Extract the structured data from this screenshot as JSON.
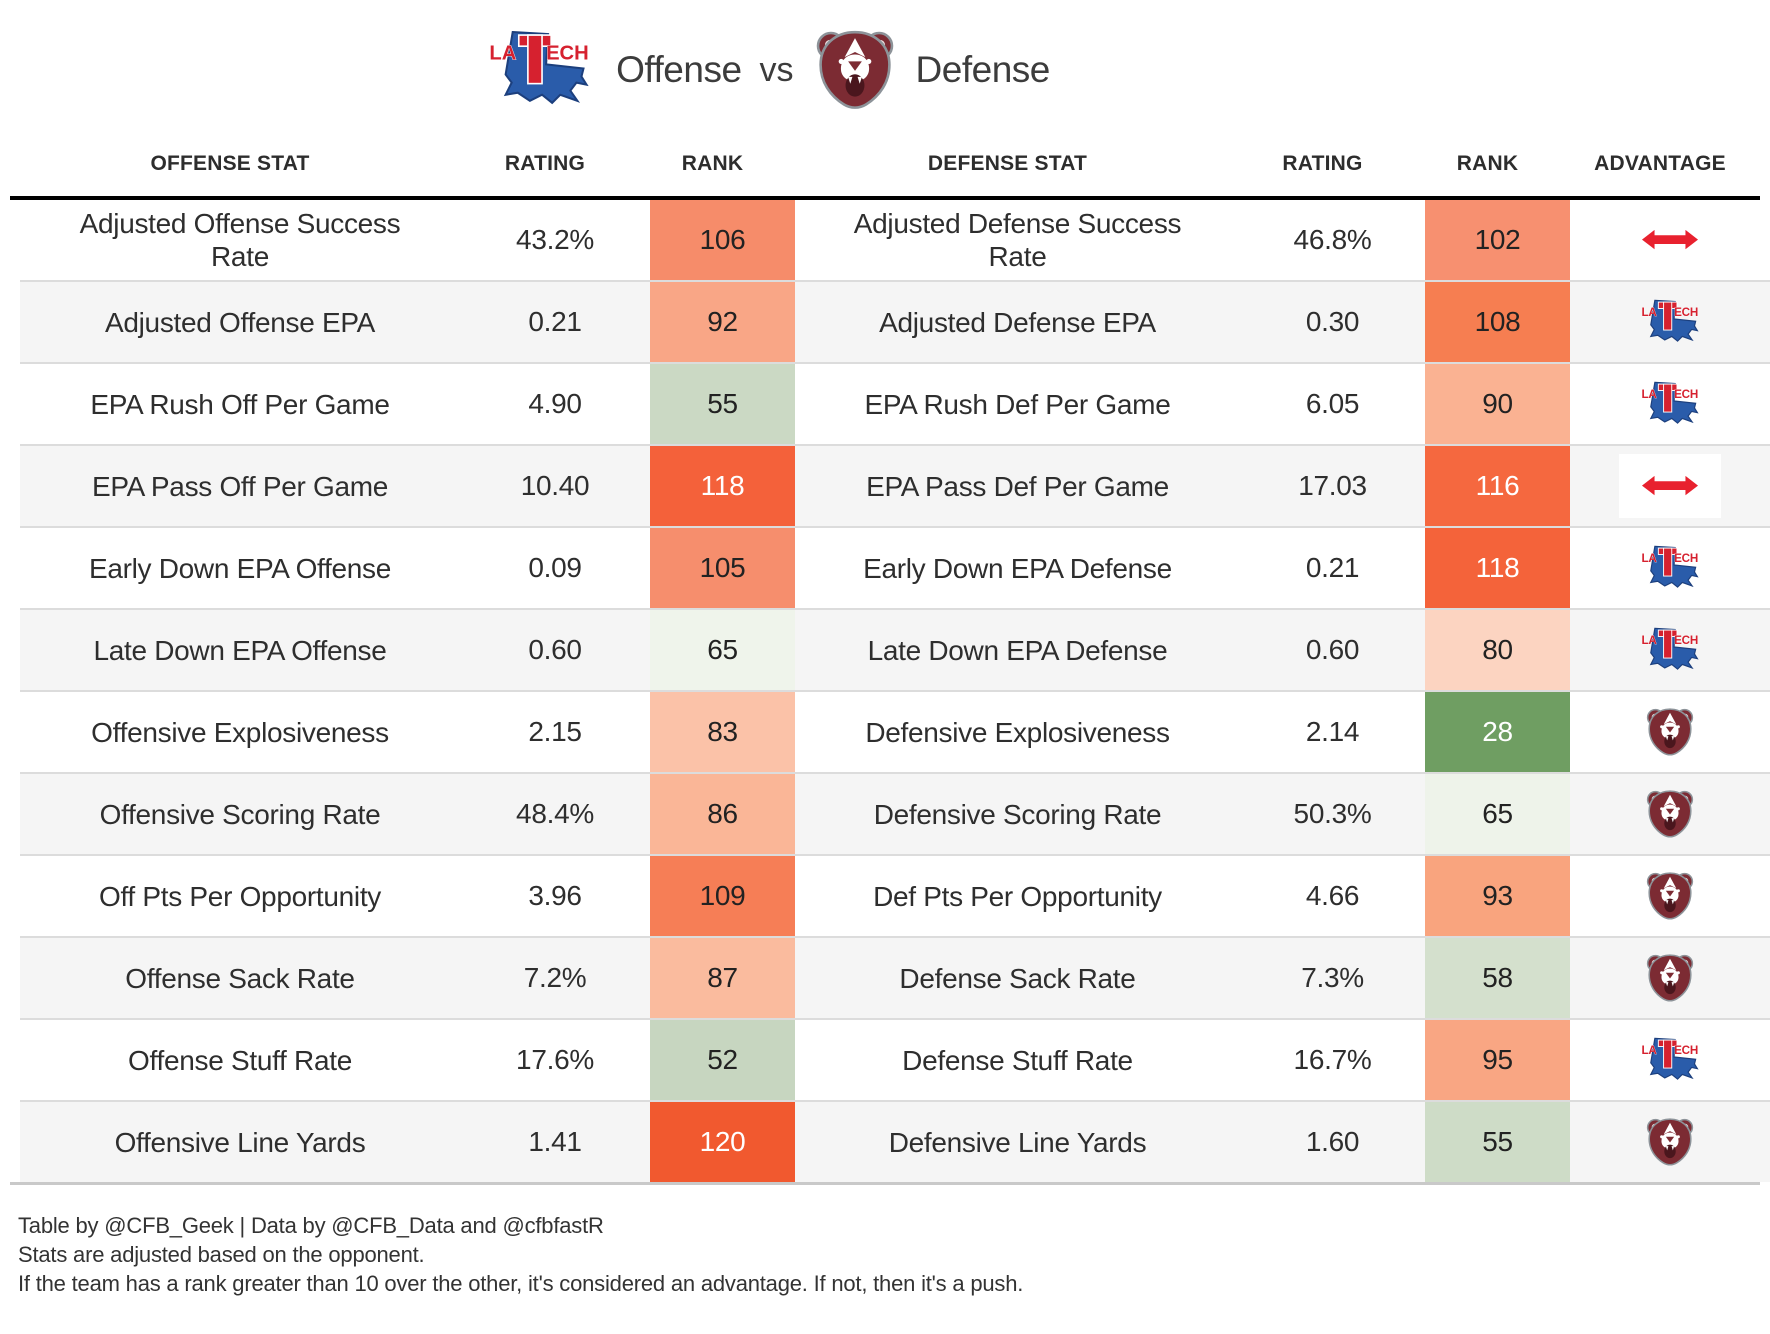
{
  "header": {
    "offense_label": "Offense",
    "vs_label": "vs",
    "defense_label": "Defense",
    "offense_logo_icon": "latech-logo",
    "defense_logo_icon": "bear-logo"
  },
  "columns": [
    "OFFENSE STAT",
    "RATING",
    "RANK",
    "DEFENSE STAT",
    "RATING",
    "RANK",
    "ADVANTAGE"
  ],
  "rows": [
    {
      "offense": {
        "stat": "Adjusted Offense Success Rate",
        "rating": "43.2%",
        "rank": "106",
        "rank_bg": "#f68c6a",
        "rank_fg": "#222222"
      },
      "defense": {
        "stat": "Adjusted Defense Success Rate",
        "rating": "46.8%",
        "rank": "102",
        "rank_bg": "#f79070",
        "rank_fg": "#222222"
      },
      "advantage": "push"
    },
    {
      "offense": {
        "stat": "Adjusted Offense EPA",
        "rating": "0.21",
        "rank": "92",
        "rank_bg": "#f9a686",
        "rank_fg": "#222222"
      },
      "defense": {
        "stat": "Adjusted Defense EPA",
        "rating": "0.30",
        "rank": "108",
        "rank_bg": "#f67e51",
        "rank_fg": "#222222"
      },
      "advantage": "latech"
    },
    {
      "offense": {
        "stat": "EPA Rush Off Per Game",
        "rating": "4.90",
        "rank": "55",
        "rank_bg": "#cbd9c4",
        "rank_fg": "#222222"
      },
      "defense": {
        "stat": "EPA Rush Def Per Game",
        "rating": "6.05",
        "rank": "90",
        "rank_bg": "#fab292",
        "rank_fg": "#222222"
      },
      "advantage": "latech"
    },
    {
      "offense": {
        "stat": "EPA Pass Off Per Game",
        "rating": "10.40",
        "rank": "118",
        "rank_bg": "#f4613a",
        "rank_fg": "#ffffff"
      },
      "defense": {
        "stat": "EPA Pass Def Per Game",
        "rating": "17.03",
        "rank": "116",
        "rank_bg": "#f5683f",
        "rank_fg": "#ffffff"
      },
      "advantage": "push"
    },
    {
      "offense": {
        "stat": "Early Down EPA Offense",
        "rating": "0.09",
        "rank": "105",
        "rank_bg": "#f68e6d",
        "rank_fg": "#222222"
      },
      "defense": {
        "stat": "Early Down EPA Defense",
        "rating": "0.21",
        "rank": "118",
        "rank_bg": "#f4633a",
        "rank_fg": "#ffffff"
      },
      "advantage": "latech"
    },
    {
      "offense": {
        "stat": "Late Down EPA Offense",
        "rating": "0.60",
        "rank": "65",
        "rank_bg": "#eff4eb",
        "rank_fg": "#222222"
      },
      "defense": {
        "stat": "Late Down EPA Defense",
        "rating": "0.60",
        "rank": "80",
        "rank_bg": "#fcd4c1",
        "rank_fg": "#222222"
      },
      "advantage": "latech"
    },
    {
      "offense": {
        "stat": "Offensive Explosiveness",
        "rating": "2.15",
        "rank": "83",
        "rank_bg": "#fbc2a8",
        "rank_fg": "#222222"
      },
      "defense": {
        "stat": "Defensive Explosiveness",
        "rating": "2.14",
        "rank": "28",
        "rank_bg": "#6f9e62",
        "rank_fg": "#ffffff"
      },
      "advantage": "bears"
    },
    {
      "offense": {
        "stat": "Offensive Scoring Rate",
        "rating": "48.4%",
        "rank": "86",
        "rank_bg": "#fab697",
        "rank_fg": "#222222"
      },
      "defense": {
        "stat": "Defensive Scoring Rate",
        "rating": "50.3%",
        "rank": "65",
        "rank_bg": "#eef3ea",
        "rank_fg": "#222222"
      },
      "advantage": "bears"
    },
    {
      "offense": {
        "stat": "Off Pts Per Opportunity",
        "rating": "3.96",
        "rank": "109",
        "rank_bg": "#f67e56",
        "rank_fg": "#222222"
      },
      "defense": {
        "stat": "Def Pts Per Opportunity",
        "rating": "4.66",
        "rank": "93",
        "rank_bg": "#f9a47e",
        "rank_fg": "#222222"
      },
      "advantage": "bears"
    },
    {
      "offense": {
        "stat": "Offense Sack Rate",
        "rating": "7.2%",
        "rank": "87",
        "rank_bg": "#fabb9e",
        "rank_fg": "#222222"
      },
      "defense": {
        "stat": "Defense Sack Rate",
        "rating": "7.3%",
        "rank": "58",
        "rank_bg": "#d4e0cd",
        "rank_fg": "#222222"
      },
      "advantage": "bears"
    },
    {
      "offense": {
        "stat": "Offense Stuff Rate",
        "rating": "17.6%",
        "rank": "52",
        "rank_bg": "#c7d6c0",
        "rank_fg": "#222222"
      },
      "defense": {
        "stat": "Defense Stuff Rate",
        "rating": "16.7%",
        "rank": "95",
        "rank_bg": "#f9a683",
        "rank_fg": "#222222"
      },
      "advantage": "latech"
    },
    {
      "offense": {
        "stat": "Offensive Line Yards",
        "rating": "1.41",
        "rank": "120",
        "rank_bg": "#f1592f",
        "rank_fg": "#ffffff"
      },
      "defense": {
        "stat": "Defensive Line Yards",
        "rating": "1.60",
        "rank": "55",
        "rank_bg": "#cedcc7",
        "rank_fg": "#222222"
      },
      "advantage": "bears"
    }
  ],
  "footer": {
    "line1": "Table by @CFB_Geek | Data by @CFB_Data and @cfbfastR",
    "line2": "Stats are adjusted based on the opponent.",
    "line3": "If the team has a rank greater than 10 over the other, it's considered an advantage. If not, then it's a push."
  },
  "colors": {
    "latech_blue": "#2a5caa",
    "latech_red": "#d6212f",
    "bear_maroon": "#7c2b33",
    "push_arrow_red": "#e8212e",
    "header_border": "#000000",
    "row_alt_bg": "#f5f5f5",
    "row_divider": "#dcdcdc"
  },
  "chart_data": {
    "type": "table",
    "title": "Offense vs Defense",
    "columns": [
      "OFFENSE STAT",
      "RATING",
      "RANK",
      "DEFENSE STAT",
      "RATING",
      "RANK",
      "ADVANTAGE"
    ],
    "rows": [
      [
        "Adjusted Offense Success Rate",
        "43.2%",
        106,
        "Adjusted Defense Success Rate",
        "46.8%",
        102,
        "push"
      ],
      [
        "Adjusted Offense EPA",
        "0.21",
        92,
        "Adjusted Defense EPA",
        "0.30",
        108,
        "latech"
      ],
      [
        "EPA Rush Off Per Game",
        "4.90",
        55,
        "EPA Rush Def Per Game",
        "6.05",
        90,
        "latech"
      ],
      [
        "EPA Pass Off Per Game",
        "10.40",
        118,
        "EPA Pass Def Per Game",
        "17.03",
        116,
        "push"
      ],
      [
        "Early Down EPA Offense",
        "0.09",
        105,
        "Early Down EPA Defense",
        "0.21",
        118,
        "latech"
      ],
      [
        "Late Down EPA Offense",
        "0.60",
        65,
        "Late Down EPA Defense",
        "0.60",
        80,
        "latech"
      ],
      [
        "Offensive Explosiveness",
        "2.15",
        83,
        "Defensive Explosiveness",
        "2.14",
        28,
        "bears"
      ],
      [
        "Offensive Scoring Rate",
        "48.4%",
        86,
        "Defensive Scoring Rate",
        "50.3%",
        65,
        "bears"
      ],
      [
        "Off Pts Per Opportunity",
        "3.96",
        109,
        "Def Pts Per Opportunity",
        "4.66",
        93,
        "bears"
      ],
      [
        "Offense Sack Rate",
        "7.2%",
        87,
        "Defense Sack Rate",
        "7.3%",
        58,
        "bears"
      ],
      [
        "Offense Stuff Rate",
        "17.6%",
        52,
        "Defense Stuff Rate",
        "16.7%",
        95,
        "latech"
      ],
      [
        "Offensive Line Yards",
        "1.41",
        120,
        "Defensive Line Yards",
        "1.60",
        55,
        "bears"
      ]
    ],
    "legend": "rank cells colored green (good) to orange-red (bad); white text on extreme values"
  }
}
